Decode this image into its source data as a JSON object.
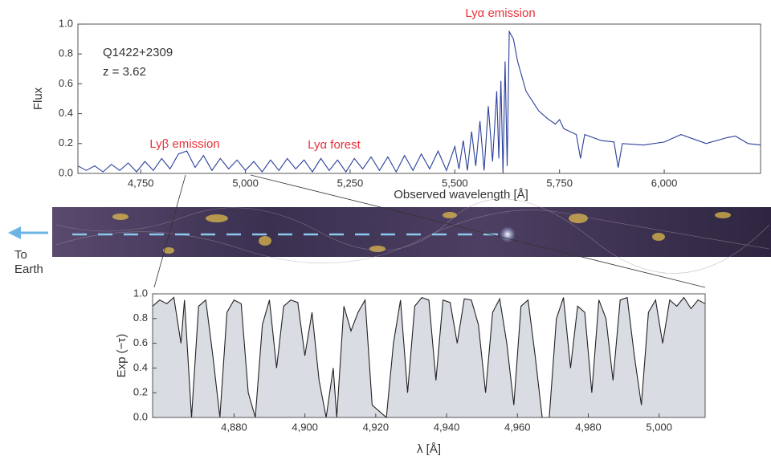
{
  "chart_data": [
    {
      "type": "line",
      "color": "#2b3f9a",
      "y_label": "Flux",
      "x_label": "Observed wavelength [Å]",
      "annotations": [
        "Lyα emission",
        "Lyβ emission",
        "Lyα forest",
        "Q1422+2309",
        "z = 3.62"
      ],
      "annotation_color": "#e8313a",
      "xlim": [
        4600,
        6230
      ],
      "ylim": [
        0,
        1
      ],
      "xticks": [
        {
          "value": 4750,
          "label": "4,750"
        },
        {
          "value": 5000,
          "label": "5,000"
        },
        {
          "value": 5250,
          "label": "5,250"
        },
        {
          "value": 5500,
          "label": "5,500"
        },
        {
          "value": 5750,
          "label": "5,750"
        },
        {
          "value": 6000,
          "label": "6,000"
        }
      ],
      "yticks": [
        {
          "value": 0,
          "label": "0.0"
        },
        {
          "value": 0.2,
          "label": "0.2"
        },
        {
          "value": 0.4,
          "label": "0.4"
        },
        {
          "value": 0.6,
          "label": "0.6"
        },
        {
          "value": 0.8,
          "label": "0.8"
        },
        {
          "value": 1,
          "label": "1.0"
        }
      ],
      "x": [
        4600,
        4620,
        4640,
        4660,
        4680,
        4700,
        4720,
        4740,
        4760,
        4780,
        4800,
        4820,
        4840,
        4860,
        4880,
        4900,
        4920,
        4940,
        4960,
        4980,
        5000,
        5020,
        5040,
        5060,
        5080,
        5100,
        5120,
        5140,
        5160,
        5180,
        5200,
        5220,
        5240,
        5260,
        5280,
        5300,
        5320,
        5340,
        5360,
        5380,
        5400,
        5420,
        5440,
        5460,
        5480,
        5500,
        5510,
        5520,
        5530,
        5540,
        5550,
        5560,
        5570,
        5580,
        5590,
        5600,
        5605,
        5610,
        5615,
        5620,
        5625,
        5630,
        5640,
        5650,
        5670,
        5700,
        5720,
        5740,
        5750,
        5760,
        5790,
        5800,
        5810,
        5850,
        5880,
        5890,
        5900,
        5950,
        6000,
        6040,
        6070,
        6100,
        6150,
        6170,
        6200,
        6230
      ],
      "values": [
        0.05,
        0.02,
        0.05,
        0.01,
        0.06,
        0.02,
        0.07,
        0.01,
        0.08,
        0.02,
        0.1,
        0.03,
        0.13,
        0.15,
        0.04,
        0.12,
        0.02,
        0.1,
        0.03,
        0.09,
        0.02,
        0.08,
        0.01,
        0.09,
        0.02,
        0.1,
        0.03,
        0.09,
        0.01,
        0.1,
        0.02,
        0.09,
        0.01,
        0.1,
        0.03,
        0.11,
        0.02,
        0.11,
        0.01,
        0.12,
        0.02,
        0.13,
        0.03,
        0.15,
        0.02,
        0.18,
        0.03,
        0.22,
        0.02,
        0.28,
        0.05,
        0.35,
        0.02,
        0.45,
        0.08,
        0.55,
        0.1,
        0.62,
        0.0,
        0.75,
        0.05,
        0.95,
        0.9,
        0.75,
        0.55,
        0.42,
        0.37,
        0.33,
        0.36,
        0.3,
        0.26,
        0.1,
        0.26,
        0.22,
        0.21,
        0.04,
        0.2,
        0.19,
        0.21,
        0.26,
        0.23,
        0.2,
        0.24,
        0.25,
        0.2,
        0.19
      ]
    },
    {
      "type": "area",
      "color": "#222222",
      "fill": "#d9dde3",
      "y_label": "Exp (−τ)",
      "x_label": "λ [Å]",
      "xlim": [
        4857,
        5013
      ],
      "ylim": [
        0,
        1
      ],
      "xticks": [
        {
          "value": 4880,
          "label": "4,880"
        },
        {
          "value": 4900,
          "label": "4,900"
        },
        {
          "value": 4920,
          "label": "4,920"
        },
        {
          "value": 4940,
          "label": "4,940"
        },
        {
          "value": 4960,
          "label": "4,960"
        },
        {
          "value": 4980,
          "label": "4,980"
        },
        {
          "value": 5000,
          "label": "5,000"
        }
      ],
      "yticks": [
        {
          "value": 0,
          "label": "0.0"
        },
        {
          "value": 0.2,
          "label": "0.2"
        },
        {
          "value": 0.4,
          "label": "0.4"
        },
        {
          "value": 0.6,
          "label": "0.6"
        },
        {
          "value": 0.8,
          "label": "0.8"
        },
        {
          "value": 1,
          "label": "1.0"
        }
      ],
      "x": [
        4857,
        4859,
        4861,
        4863,
        4865,
        4866,
        4868,
        4870,
        4872,
        4874,
        4876,
        4878,
        4880,
        4882,
        4884,
        4886,
        4888,
        4890,
        4892,
        4894,
        4896,
        4898,
        4900,
        4902,
        4904,
        4906,
        4908,
        4909,
        4911,
        4913,
        4915,
        4917,
        4919,
        4921,
        4923,
        4925,
        4927,
        4929,
        4931,
        4933,
        4935,
        4937,
        4939,
        4941,
        4943,
        4945,
        4947,
        4949,
        4951,
        4953,
        4955,
        4957,
        4959,
        4961,
        4963,
        4965,
        4967,
        4969,
        4971,
        4973,
        4975,
        4977,
        4979,
        4981,
        4983,
        4985,
        4987,
        4989,
        4991,
        4993,
        4995,
        4997,
        4999,
        5001,
        5003,
        5005,
        5007,
        5009,
        5011,
        5013
      ],
      "values": [
        0.9,
        0.95,
        0.92,
        0.97,
        0.6,
        0.95,
        0.0,
        0.9,
        0.95,
        0.5,
        0.0,
        0.85,
        0.95,
        0.92,
        0.2,
        0.0,
        0.75,
        0.95,
        0.4,
        0.9,
        0.95,
        0.93,
        0.5,
        0.85,
        0.3,
        0.0,
        0.4,
        0.0,
        0.9,
        0.7,
        0.85,
        0.95,
        0.1,
        0.05,
        0.0,
        0.6,
        0.95,
        0.2,
        0.9,
        0.97,
        0.95,
        0.3,
        0.95,
        0.93,
        0.6,
        0.96,
        0.95,
        0.75,
        0.2,
        0.85,
        0.96,
        0.6,
        0.1,
        0.9,
        0.95,
        0.5,
        0.0,
        0.0,
        0.8,
        0.97,
        0.4,
        0.9,
        0.85,
        0.2,
        0.95,
        0.8,
        0.3,
        0.95,
        0.97,
        0.5,
        0.1,
        0.85,
        0.95,
        0.6,
        0.95,
        0.9,
        0.97,
        0.88,
        0.95,
        0.92
      ]
    }
  ],
  "strip": {
    "label": "To Earth"
  }
}
